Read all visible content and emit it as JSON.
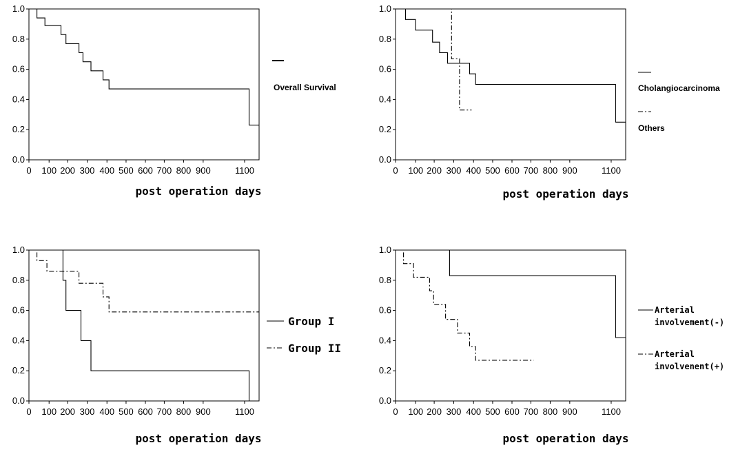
{
  "chart_data": [
    {
      "type": "line",
      "xlabel": "post operation days",
      "x_ticks": [
        "0",
        "100",
        "200",
        "300",
        "400",
        "500",
        "600",
        "700",
        "800",
        "900",
        "1100"
      ],
      "y_ticks": [
        "1.0",
        "0.8",
        "0.6",
        "0.4",
        "0.2",
        "0.0"
      ],
      "xlim": [
        0,
        1150
      ],
      "ylim": [
        0,
        1.0
      ],
      "legend_position": "right",
      "series": [
        {
          "name": "Overall Survival",
          "style": "solid",
          "points": [
            [
              0,
              1.0
            ],
            [
              40,
              1.0
            ],
            [
              40,
              0.94
            ],
            [
              80,
              0.94
            ],
            [
              80,
              0.89
            ],
            [
              160,
              0.89
            ],
            [
              160,
              0.83
            ],
            [
              185,
              0.83
            ],
            [
              185,
              0.77
            ],
            [
              250,
              0.77
            ],
            [
              250,
              0.71
            ],
            [
              270,
              0.71
            ],
            [
              270,
              0.65
            ],
            [
              310,
              0.65
            ],
            [
              310,
              0.59
            ],
            [
              370,
              0.59
            ],
            [
              370,
              0.53
            ],
            [
              400,
              0.53
            ],
            [
              400,
              0.47
            ],
            [
              1100,
              0.47
            ],
            [
              1100,
              0.23
            ],
            [
              1150,
              0.23
            ]
          ]
        }
      ]
    },
    {
      "type": "line",
      "xlabel": "post operation days",
      "x_ticks": [
        "0",
        "100",
        "200",
        "300",
        "400",
        "500",
        "600",
        "700",
        "800",
        "900",
        "1100"
      ],
      "y_ticks": [
        "1.0",
        "0.8",
        "0.6",
        "0.4",
        "0.2",
        "0.0"
      ],
      "xlim": [
        0,
        1150
      ],
      "ylim": [
        0,
        1.0
      ],
      "legend_position": "right",
      "series": [
        {
          "name": "Cholangiocarcinoma",
          "style": "solid",
          "points": [
            [
              0,
              1.0
            ],
            [
              50,
              1.0
            ],
            [
              50,
              0.93
            ],
            [
              100,
              0.93
            ],
            [
              100,
              0.86
            ],
            [
              185,
              0.86
            ],
            [
              185,
              0.78
            ],
            [
              220,
              0.78
            ],
            [
              220,
              0.71
            ],
            [
              260,
              0.71
            ],
            [
              260,
              0.64
            ],
            [
              370,
              0.64
            ],
            [
              370,
              0.57
            ],
            [
              400,
              0.57
            ],
            [
              400,
              0.5
            ],
            [
              1100,
              0.5
            ],
            [
              1100,
              0.25
            ],
            [
              1150,
              0.25
            ]
          ]
        },
        {
          "name": "Others",
          "style": "dashdot",
          "points": [
            [
              0,
              1.0
            ],
            [
              280,
              1.0
            ],
            [
              280,
              0.67
            ],
            [
              320,
              0.67
            ],
            [
              320,
              0.33
            ],
            [
              380,
              0.33
            ]
          ]
        }
      ]
    },
    {
      "type": "line",
      "xlabel": "post operation days",
      "x_ticks": [
        "0",
        "100",
        "200",
        "300",
        "400",
        "500",
        "600",
        "700",
        "800",
        "900",
        "1100"
      ],
      "y_ticks": [
        "1.0",
        "0.8",
        "0.6",
        "0.4",
        "0.2",
        "0.0"
      ],
      "xlim": [
        0,
        1150
      ],
      "ylim": [
        0,
        1.0
      ],
      "legend_position": "right",
      "series": [
        {
          "name": "Group I",
          "style": "solid",
          "points": [
            [
              0,
              1.0
            ],
            [
              170,
              1.0
            ],
            [
              170,
              0.8
            ],
            [
              185,
              0.8
            ],
            [
              185,
              0.6
            ],
            [
              260,
              0.6
            ],
            [
              260,
              0.4
            ],
            [
              310,
              0.4
            ],
            [
              310,
              0.2
            ],
            [
              1100,
              0.2
            ],
            [
              1100,
              0.0
            ]
          ]
        },
        {
          "name": "Group II",
          "style": "dashdot",
          "points": [
            [
              0,
              1.0
            ],
            [
              40,
              1.0
            ],
            [
              40,
              0.93
            ],
            [
              90,
              0.93
            ],
            [
              90,
              0.86
            ],
            [
              250,
              0.86
            ],
            [
              250,
              0.78
            ],
            [
              370,
              0.78
            ],
            [
              370,
              0.69
            ],
            [
              400,
              0.69
            ],
            [
              400,
              0.59
            ],
            [
              1150,
              0.59
            ]
          ]
        }
      ]
    },
    {
      "type": "line",
      "xlabel": "post operation days",
      "x_ticks": [
        "0",
        "100",
        "200",
        "300",
        "400",
        "500",
        "600",
        "700",
        "800",
        "900",
        "1100"
      ],
      "y_ticks": [
        "1.0",
        "0.8",
        "0.6",
        "0.4",
        "0.2",
        "0.0"
      ],
      "xlim": [
        0,
        1150
      ],
      "ylim": [
        0,
        1.0
      ],
      "legend_position": "right",
      "series": [
        {
          "name": "Arterial involvement(-)",
          "label_lines": [
            "Arterial",
            "involvement(-)"
          ],
          "style": "solid",
          "points": [
            [
              0,
              1.0
            ],
            [
              270,
              1.0
            ],
            [
              270,
              0.83
            ],
            [
              1100,
              0.83
            ],
            [
              1100,
              0.42
            ],
            [
              1150,
              0.42
            ]
          ]
        },
        {
          "name": "Arterial involvenent(+)",
          "label_lines": [
            "Arterial",
            "involvenent(+)"
          ],
          "style": "dashdot",
          "points": [
            [
              0,
              1.0
            ],
            [
              40,
              1.0
            ],
            [
              40,
              0.91
            ],
            [
              90,
              0.91
            ],
            [
              90,
              0.82
            ],
            [
              170,
              0.82
            ],
            [
              170,
              0.73
            ],
            [
              190,
              0.73
            ],
            [
              190,
              0.64
            ],
            [
              250,
              0.64
            ],
            [
              250,
              0.54
            ],
            [
              310,
              0.54
            ],
            [
              310,
              0.45
            ],
            [
              370,
              0.45
            ],
            [
              370,
              0.36
            ],
            [
              400,
              0.36
            ],
            [
              400,
              0.27
            ],
            [
              690,
              0.27
            ]
          ]
        }
      ]
    }
  ]
}
